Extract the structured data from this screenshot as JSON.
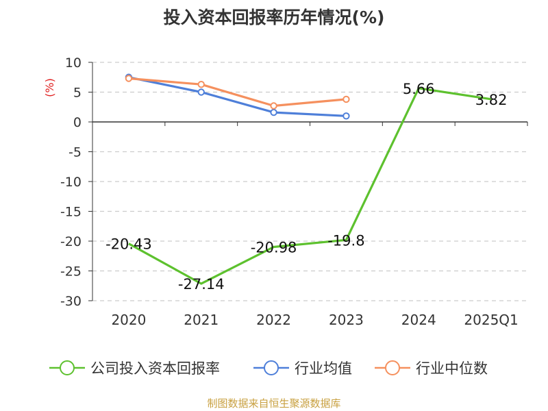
{
  "chart_data": {
    "type": "line",
    "title": "投入资本回报率历年情况(%)",
    "ylabel": "(%)",
    "xlabel": "",
    "categories": [
      "2020",
      "2021",
      "2022",
      "2023",
      "2024",
      "2025Q1"
    ],
    "ylim": [
      -30,
      10
    ],
    "yticks": [
      10,
      5,
      0,
      -5,
      -10,
      -15,
      -20,
      -25,
      -30
    ],
    "grid": true,
    "legend_position": "bottom",
    "series": [
      {
        "name": "公司投入资本回报率",
        "color": "#5dc12e",
        "values": [
          -20.43,
          -27.14,
          -20.98,
          -19.8,
          5.66,
          3.82
        ],
        "value_labels": [
          "-20.43",
          "-27.14",
          "-20.98",
          "-19.8",
          "5.66",
          "3.82"
        ],
        "show_markers": false
      },
      {
        "name": "行业均值",
        "color": "#4e7fd9",
        "values": [
          7.5,
          5.0,
          1.6,
          1.0,
          null,
          null
        ],
        "show_markers": true
      },
      {
        "name": "行业中位数",
        "color": "#f5905e",
        "values": [
          7.3,
          6.3,
          2.7,
          3.8,
          null,
          null
        ],
        "show_markers": true
      }
    ]
  },
  "footer": {
    "source": "制图数据来自恒生聚源数据库",
    "source_color": "#c8a040"
  },
  "colors": {
    "title": "#333333",
    "ylabel": "#e02020",
    "axis": "#333333",
    "grid": "#cccccc",
    "tick_text": "#333333"
  }
}
